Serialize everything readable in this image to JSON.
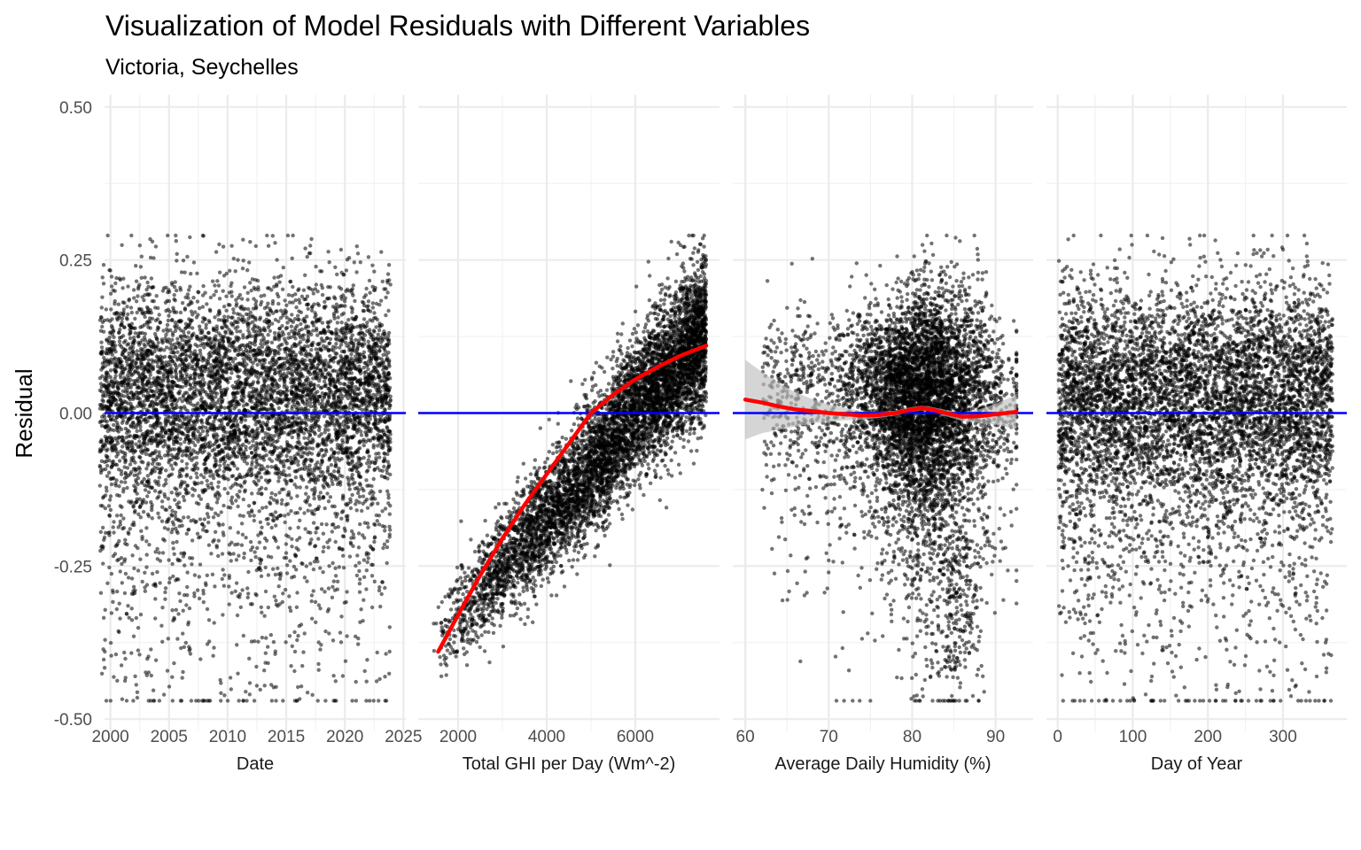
{
  "chart_data": {
    "type": "scatter",
    "title": "Visualization of Model Residuals with Different Variables",
    "subtitle": "Victoria, Seychelles",
    "ylabel": "Residual",
    "ylim": [
      -0.52,
      0.52
    ],
    "yticks": [
      -0.5,
      -0.25,
      0.0,
      0.25,
      0.5
    ],
    "ytick_labels": [
      "-0.50",
      "-0.25",
      "0.00",
      "0.25",
      "0.50"
    ],
    "reference_line": {
      "y": 0,
      "color": "#0000ff"
    },
    "point_color": "#000000",
    "smooth_color": "#ff0000",
    "ribbon_color": "#bfbfbf",
    "grid": true,
    "panels": [
      {
        "xlabel": "Date",
        "xlim": [
          1999.5,
          2025.2
        ],
        "xticks": [
          2000,
          2005,
          2010,
          2015,
          2020,
          2025
        ],
        "xtick_labels": [
          "2000",
          "2005",
          "2010",
          "2015",
          "2020",
          "2025"
        ],
        "point_range": [
          1999.1,
          2023.9
        ],
        "density": "uniform",
        "smooth": null
      },
      {
        "xlabel": "Total GHI per Day (Wm^-2)",
        "xlim": [
          1100,
          7900
        ],
        "xticks": [
          2000,
          4000,
          6000
        ],
        "xtick_labels": [
          "2000",
          "4000",
          "6000"
        ],
        "point_range": [
          1420,
          7600
        ],
        "density": "ghi",
        "smooth": {
          "x": [
            1550,
            2000,
            2500,
            3000,
            3500,
            4000,
            4500,
            5000,
            5500,
            5800,
            6000,
            6500,
            7000,
            7600
          ],
          "y": [
            -0.39,
            -0.33,
            -0.265,
            -0.205,
            -0.15,
            -0.1,
            -0.05,
            0.0,
            0.03,
            0.045,
            0.055,
            0.075,
            0.093,
            0.11
          ]
        }
      },
      {
        "xlabel": "Average Daily Humidity (%)",
        "xlim": [
          58.5,
          94.5
        ],
        "xticks": [
          60,
          70,
          80,
          90
        ],
        "xtick_labels": [
          "60",
          "70",
          "80",
          "90"
        ],
        "point_range": [
          60.5,
          92.5
        ],
        "density": "humidity",
        "smooth": {
          "x": [
            60,
            62,
            64,
            66,
            68,
            70,
            72,
            74,
            76,
            78,
            80,
            81,
            82,
            84,
            86,
            88,
            90,
            92.5
          ],
          "y": [
            0.022,
            0.017,
            0.011,
            0.006,
            0.003,
            0.0,
            -0.002,
            -0.004,
            -0.003,
            0.0,
            0.006,
            0.008,
            0.007,
            0.0,
            -0.006,
            -0.005,
            -0.002,
            0.002
          ],
          "band": [
            0.065,
            0.05,
            0.038,
            0.028,
            0.02,
            0.014,
            0.01,
            0.007,
            0.005,
            0.004,
            0.004,
            0.004,
            0.004,
            0.005,
            0.007,
            0.011,
            0.017,
            0.028
          ]
        }
      },
      {
        "xlabel": "Day of Year",
        "xlim": [
          -15,
          385
        ],
        "xticks": [
          0,
          100,
          200,
          300
        ],
        "xtick_labels": [
          "0",
          "100",
          "200",
          "300"
        ],
        "point_range": [
          1,
          366
        ],
        "density": "doy",
        "smooth": null
      }
    ]
  }
}
